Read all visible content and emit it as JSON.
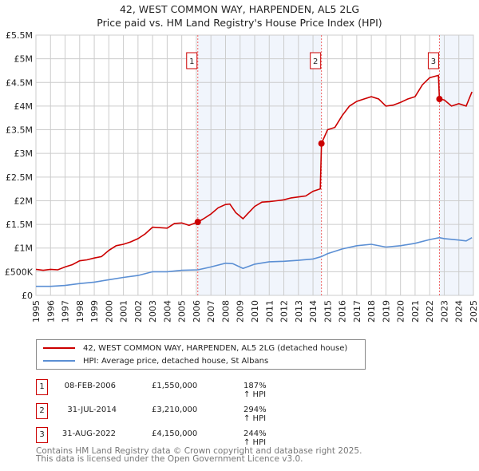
{
  "chart_data": {
    "type": "line",
    "title": "42, WEST COMMON WAY, HARPENDEN, AL5 2LG",
    "subtitle": "Price paid vs. HM Land Registry's House Price Index (HPI)",
    "xlim": [
      1995,
      2025
    ],
    "ylim": [
      0,
      5500000
    ],
    "y_ticks": [
      {
        "v": 0,
        "label": "£0"
      },
      {
        "v": 500000,
        "label": "£500K"
      },
      {
        "v": 1000000,
        "label": "£1M"
      },
      {
        "v": 1500000,
        "label": "£1.5M"
      },
      {
        "v": 2000000,
        "label": "£2M"
      },
      {
        "v": 2500000,
        "label": "£2.5M"
      },
      {
        "v": 3000000,
        "label": "£3M"
      },
      {
        "v": 3500000,
        "label": "£3.5M"
      },
      {
        "v": 4000000,
        "label": "£4M"
      },
      {
        "v": 4500000,
        "label": "£4.5M"
      },
      {
        "v": 5000000,
        "label": "£5M"
      },
      {
        "v": 5500000,
        "label": "£5.5M"
      }
    ],
    "x_ticks": [
      "1995",
      "1996",
      "1997",
      "1998",
      "1999",
      "2000",
      "2001",
      "2002",
      "2003",
      "2004",
      "2005",
      "2006",
      "2007",
      "2008",
      "2009",
      "2010",
      "2011",
      "2012",
      "2013",
      "2014",
      "2015",
      "2016",
      "2017",
      "2018",
      "2019",
      "2020",
      "2021",
      "2022",
      "2023",
      "2024",
      "2025"
    ],
    "grid": true,
    "series": [
      {
        "name": "42, WEST COMMON WAY, HARPENDEN, AL5 2LG (detached house)",
        "color": "#cc0000",
        "x": [
          1995,
          1995.5,
          1996,
          1996.5,
          1997,
          1997.5,
          1998,
          1998.5,
          1999,
          1999.5,
          2000,
          2000.5,
          2001,
          2001.5,
          2002,
          2002.5,
          2003,
          2003.5,
          2004,
          2004.5,
          2005,
          2005.5,
          2006.1,
          2006.5,
          2007,
          2007.5,
          2008,
          2008.3,
          2008.7,
          2009.2,
          2009.5,
          2010,
          2010.5,
          2011,
          2011.5,
          2012,
          2012.5,
          2013,
          2013.5,
          2014,
          2014.5,
          2014.58,
          2015,
          2015.5,
          2016,
          2016.5,
          2017,
          2017.5,
          2018,
          2018.5,
          2019,
          2019.5,
          2020,
          2020.5,
          2021,
          2021.5,
          2022,
          2022.6,
          2022.67,
          2023,
          2023.5,
          2024,
          2024.5,
          2024.9
        ],
        "y": [
          550000,
          530000,
          550000,
          540000,
          600000,
          650000,
          730000,
          750000,
          790000,
          820000,
          950000,
          1050000,
          1080000,
          1130000,
          1200000,
          1300000,
          1440000,
          1430000,
          1420000,
          1520000,
          1530000,
          1480000,
          1550000,
          1620000,
          1720000,
          1850000,
          1920000,
          1930000,
          1750000,
          1620000,
          1720000,
          1880000,
          1970000,
          1980000,
          2000000,
          2020000,
          2060000,
          2080000,
          2100000,
          2200000,
          2250000,
          3210000,
          3500000,
          3550000,
          3800000,
          4000000,
          4100000,
          4150000,
          4200000,
          4150000,
          4000000,
          4020000,
          4080000,
          4150000,
          4200000,
          4450000,
          4600000,
          4650000,
          4150000,
          4130000,
          4000000,
          4050000,
          4000000,
          4300000
        ]
      },
      {
        "name": "HPI: Average price, detached house, St Albans",
        "color": "#5b8fd4",
        "x": [
          1995,
          1996,
          1997,
          1998,
          1999,
          2000,
          2001,
          2002,
          2003,
          2004,
          2005,
          2006.1,
          2007,
          2008,
          2008.5,
          2009.2,
          2010,
          2011,
          2012,
          2013,
          2014,
          2014.58,
          2015,
          2016,
          2017,
          2018,
          2019,
          2020,
          2021,
          2022,
          2022.67,
          2023,
          2024,
          2024.5,
          2024.9
        ],
        "y": [
          190000,
          190000,
          210000,
          250000,
          280000,
          330000,
          380000,
          420000,
          500000,
          500000,
          530000,
          540000,
          600000,
          680000,
          670000,
          570000,
          660000,
          710000,
          720000,
          740000,
          770000,
          820000,
          880000,
          980000,
          1050000,
          1080000,
          1020000,
          1050000,
          1100000,
          1180000,
          1220000,
          1200000,
          1170000,
          1150000,
          1220000
        ]
      }
    ],
    "sales": [
      {
        "num": "1",
        "x": 2006.1,
        "date": "08-FEB-2006",
        "price": "£1,550,000",
        "price_value": 1550000,
        "hpi": "187% ↑ HPI"
      },
      {
        "num": "2",
        "x": 2014.58,
        "date": "31-JUL-2014",
        "price": "£3,210,000",
        "price_value": 3210000,
        "hpi": "294% ↑ HPI"
      },
      {
        "num": "3",
        "x": 2022.67,
        "date": "31-AUG-2022",
        "price": "£4,150,000",
        "price_value": 4150000,
        "hpi": "244% ↑ HPI"
      }
    ],
    "legend_placement": "below"
  },
  "footer": {
    "line1": "Contains HM Land Registry data © Crown copyright and database right 2025.",
    "line2": "This data is licensed under the Open Government Licence v3.0."
  }
}
